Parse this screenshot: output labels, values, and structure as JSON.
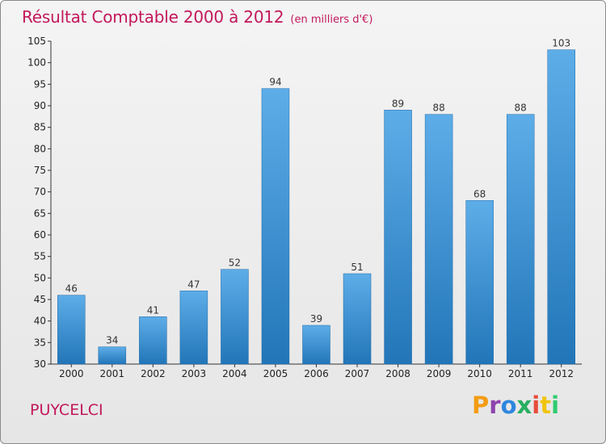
{
  "header": {
    "title": "Résultat Comptable 2000 à 2012",
    "unit": "(en milliers d'€)"
  },
  "footer": {
    "place": "PUYCELCI",
    "brand": "Proxiti",
    "brand_colors": [
      "#f39c12",
      "#8e44ad",
      "#2e86de",
      "#27ae60",
      "#e74c3c",
      "#f1c40f",
      "#2ecc71"
    ]
  },
  "colors": {
    "title": "#c2185b",
    "bar_top": "#5dade8",
    "bar_bottom": "#2276b8",
    "grid": "#cccccc"
  },
  "chart_data": {
    "type": "bar",
    "title": "Résultat Comptable 2000 à 2012",
    "xlabel": "",
    "ylabel": "(en milliers d'€)",
    "categories": [
      "2000",
      "2001",
      "2002",
      "2003",
      "2004",
      "2005",
      "2006",
      "2007",
      "2008",
      "2009",
      "2010",
      "2011",
      "2012"
    ],
    "values": [
      46,
      34,
      41,
      47,
      52,
      94,
      39,
      51,
      89,
      88,
      68,
      88,
      103
    ],
    "ylim": [
      30,
      105
    ],
    "ytick_step": 5,
    "grid": false
  }
}
